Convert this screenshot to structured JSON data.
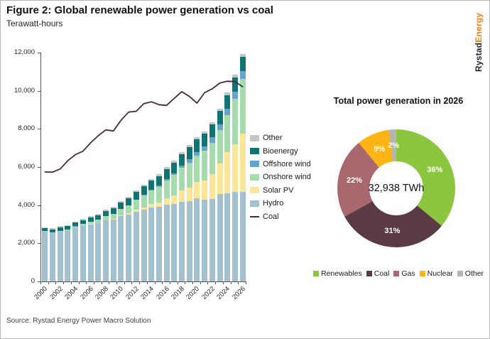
{
  "header": {
    "title": "Figure 2: Global renewable power generation vs coal",
    "subtitle": "Terawatt-hours"
  },
  "logo": {
    "part1": "Rystad",
    "part2": "Energy"
  },
  "source": "Source: Rystad Energy Power Macro Solution",
  "chart_data": [
    {
      "type": "bar",
      "subtype": "stacked-bars-with-line",
      "ylabel": "Terawatt-hours",
      "ylim": [
        0,
        12000
      ],
      "y_tick_labels": [
        "0",
        "2,000",
        "4,000",
        "6,000",
        "8,000",
        "10,000",
        "12,000"
      ],
      "categories": [
        2000,
        2001,
        2002,
        2003,
        2004,
        2005,
        2006,
        2007,
        2008,
        2009,
        2010,
        2011,
        2012,
        2013,
        2014,
        2015,
        2016,
        2017,
        2018,
        2019,
        2020,
        2021,
        2022,
        2023,
        2024,
        2025,
        2026
      ],
      "x_label_every": 2,
      "grid": false,
      "legend_position": "right",
      "legend_order": [
        "Other",
        "Bioenergy",
        "Offshore wind",
        "Onshore wind",
        "Solar PV",
        "Hydro",
        "Coal"
      ],
      "series": [
        {
          "name": "Hydro",
          "kind": "bar",
          "color": "#A3C0CE",
          "values": [
            2600,
            2520,
            2610,
            2640,
            2800,
            2900,
            3000,
            3050,
            3200,
            3250,
            3430,
            3500,
            3660,
            3750,
            3890,
            3900,
            4020,
            4060,
            4190,
            4220,
            4350,
            4280,
            4330,
            4600,
            4630,
            4680,
            4700
          ]
        },
        {
          "name": "Solar PV",
          "kind": "bar",
          "color": "#FAE696",
          "values": [
            1,
            1,
            2,
            2,
            3,
            4,
            5,
            7,
            12,
            20,
            32,
            60,
            100,
            135,
            190,
            250,
            330,
            440,
            570,
            700,
            850,
            1030,
            1300,
            1600,
            2150,
            2520,
            3060
          ]
        },
        {
          "name": "Onshore wind",
          "kind": "bar",
          "color": "#A6DBAE",
          "values": [
            31,
            38,
            52,
            63,
            85,
            103,
            132,
            170,
            218,
            273,
            340,
            430,
            520,
            630,
            700,
            820,
            950,
            1080,
            1200,
            1320,
            1400,
            1550,
            1650,
            1750,
            1950,
            2380,
            2850
          ]
        },
        {
          "name": "Offshore wind",
          "kind": "bar",
          "color": "#66A3CE",
          "values": [
            1,
            1,
            1,
            2,
            2,
            3,
            4,
            5,
            7,
            9,
            12,
            16,
            25,
            35,
            45,
            60,
            75,
            95,
            130,
            175,
            200,
            240,
            280,
            300,
            330,
            390,
            440
          ]
        },
        {
          "name": "Bioenergy",
          "kind": "bar",
          "color": "#107572",
          "values": [
            160,
            168,
            176,
            185,
            200,
            215,
            230,
            248,
            268,
            295,
            325,
            365,
            400,
            435,
            465,
            495,
            525,
            555,
            585,
            615,
            640,
            650,
            665,
            680,
            705,
            715,
            720
          ]
        },
        {
          "name": "Other",
          "kind": "bar",
          "color": "#C6C6C6",
          "values": [
            55,
            56,
            57,
            58,
            60,
            62,
            64,
            66,
            68,
            70,
            75,
            80,
            85,
            90,
            95,
            100,
            105,
            110,
            115,
            120,
            125,
            128,
            130,
            135,
            142,
            145,
            148
          ]
        },
        {
          "name": "Coal",
          "kind": "line",
          "color": "#4A2A35",
          "values": [
            5740,
            5730,
            5900,
            6330,
            6650,
            6830,
            7270,
            7640,
            7950,
            7890,
            8450,
            8880,
            8920,
            9320,
            9420,
            9270,
            9230,
            9600,
            9950,
            9700,
            9350,
            9900,
            10100,
            10400,
            10500,
            10480,
            10210
          ]
        }
      ]
    },
    {
      "type": "pie",
      "subtype": "donut",
      "title": "Total power generation in 2026",
      "center_label": "32,938 TWh",
      "start_angle_deg": -7.2,
      "slices": [
        {
          "label": "Other",
          "pct": 2,
          "color": "#B5B5B5"
        },
        {
          "label": "Renewables",
          "pct": 36,
          "color": "#8CC63F"
        },
        {
          "label": "Coal",
          "pct": 31,
          "color": "#5A3A44"
        },
        {
          "label": "Gas",
          "pct": 22,
          "color": "#A9686D"
        },
        {
          "label": "Nuclear",
          "pct": 9,
          "color": "#FDB515"
        }
      ],
      "legend_order": [
        "Renewables",
        "Coal",
        "Gas",
        "Nuclear",
        "Other"
      ]
    }
  ]
}
